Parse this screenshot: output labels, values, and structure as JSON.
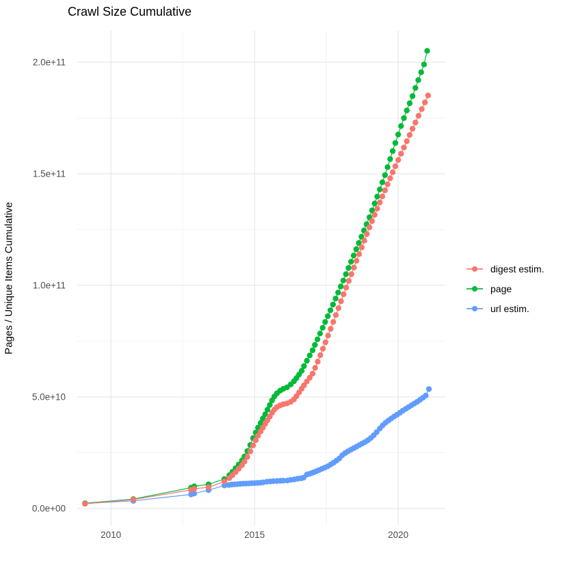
{
  "title": "Crawl Size Cumulative",
  "y_axis": {
    "title": "Pages / Unique Items Cumulative",
    "ticks": [
      {
        "label": "0.0e+00",
        "value_billions": 0
      },
      {
        "label": "5.0e+10",
        "value_billions": 50
      },
      {
        "label": "1.0e+11",
        "value_billions": 100
      },
      {
        "label": "1.5e+11",
        "value_billions": 150
      },
      {
        "label": "2.0e+11",
        "value_billions": 200
      }
    ],
    "minor_ticks_billions": [
      25,
      75,
      125,
      175
    ]
  },
  "x_axis": {
    "ticks": [
      {
        "label": "2010",
        "value": 2010
      },
      {
        "label": "2015",
        "value": 2015
      },
      {
        "label": "2020",
        "value": 2020
      }
    ],
    "minor_ticks": [
      2012.5,
      2017.5
    ]
  },
  "legend": {
    "items": [
      {
        "label": "digest estim.",
        "color": "#F8766D"
      },
      {
        "label": "page",
        "color": "#00BA38"
      },
      {
        "label": "url estim.",
        "color": "#619CFF"
      }
    ]
  },
  "colors": {
    "grid_major": "#E5E5E5",
    "grid_minor": "#F2F2F2",
    "tick_text": "#4D4D4D",
    "background": "#FFFFFF"
  },
  "chart_data": {
    "type": "line",
    "title": "Crawl Size Cumulative",
    "xlabel": "",
    "ylabel": "Pages / Unique Items Cumulative",
    "value_unit_multiplier": 1000000000.0,
    "xlim": [
      2008.83,
      2021.64
    ],
    "ylim_billions": [
      -7.7,
      214.1
    ],
    "grid": "on",
    "legend_position": "right",
    "marker": "point-with-line",
    "series": [
      {
        "name": "url estim.",
        "color": "#619CFF",
        "points": [
          [
            2009.1,
            2.2
          ],
          [
            2010.78,
            3.4
          ],
          [
            2012.79,
            6.3
          ],
          [
            2012.9,
            6.7
          ],
          [
            2013.4,
            8.2
          ],
          [
            2013.95,
            10.3
          ],
          [
            2014.1,
            10.5
          ],
          [
            2014.2,
            10.7
          ],
          [
            2014.3,
            10.8
          ],
          [
            2014.4,
            10.9
          ],
          [
            2014.5,
            11.0
          ],
          [
            2014.6,
            11.1
          ],
          [
            2014.7,
            11.15
          ],
          [
            2014.8,
            11.2
          ],
          [
            2014.9,
            11.3
          ],
          [
            2015.0,
            11.35
          ],
          [
            2015.1,
            11.45
          ],
          [
            2015.2,
            11.55
          ],
          [
            2015.3,
            11.7
          ],
          [
            2015.43,
            12.0
          ],
          [
            2015.55,
            12.1
          ],
          [
            2015.65,
            12.2
          ],
          [
            2015.78,
            12.3
          ],
          [
            2015.9,
            12.4
          ],
          [
            2016.0,
            12.45
          ],
          [
            2016.14,
            12.5
          ],
          [
            2016.26,
            12.8
          ],
          [
            2016.38,
            13.0
          ],
          [
            2016.5,
            13.3
          ],
          [
            2016.62,
            13.5
          ],
          [
            2016.71,
            13.8
          ],
          [
            2016.82,
            15.2
          ],
          [
            2016.9,
            15.5
          ],
          [
            2016.98,
            15.8
          ],
          [
            2017.06,
            16.2
          ],
          [
            2017.15,
            16.7
          ],
          [
            2017.25,
            17.2
          ],
          [
            2017.35,
            17.8
          ],
          [
            2017.45,
            18.3
          ],
          [
            2017.55,
            18.9
          ],
          [
            2017.65,
            19.7
          ],
          [
            2017.75,
            20.5
          ],
          [
            2017.85,
            21.4
          ],
          [
            2017.95,
            22.4
          ],
          [
            2018.05,
            23.8
          ],
          [
            2018.15,
            24.8
          ],
          [
            2018.25,
            25.6
          ],
          [
            2018.35,
            26.3
          ],
          [
            2018.45,
            27.0
          ],
          [
            2018.55,
            27.7
          ],
          [
            2018.65,
            28.4
          ],
          [
            2018.75,
            29.1
          ],
          [
            2018.85,
            29.8
          ],
          [
            2018.95,
            30.6
          ],
          [
            2019.05,
            31.6
          ],
          [
            2019.15,
            32.8
          ],
          [
            2019.25,
            34.2
          ],
          [
            2019.36,
            35.8
          ],
          [
            2019.46,
            37.2
          ],
          [
            2019.56,
            38.4
          ],
          [
            2019.66,
            39.4
          ],
          [
            2019.76,
            40.3
          ],
          [
            2019.86,
            41.2
          ],
          [
            2019.96,
            42.0
          ],
          [
            2020.06,
            42.9
          ],
          [
            2020.16,
            43.8
          ],
          [
            2020.26,
            44.6
          ],
          [
            2020.36,
            45.4
          ],
          [
            2020.46,
            46.2
          ],
          [
            2020.56,
            47.0
          ],
          [
            2020.66,
            47.8
          ],
          [
            2020.76,
            48.7
          ],
          [
            2020.86,
            49.6
          ],
          [
            2020.96,
            50.6
          ],
          [
            2021.07,
            53.5
          ]
        ]
      },
      {
        "name": "page",
        "color": "#00BA38",
        "points": [
          [
            2009.1,
            2.3
          ],
          [
            2010.78,
            4.2
          ],
          [
            2012.79,
            9.3
          ],
          [
            2012.9,
            9.9
          ],
          [
            2013.4,
            10.8
          ],
          [
            2013.95,
            13.2
          ],
          [
            2014.12,
            14.9
          ],
          [
            2014.23,
            16.4
          ],
          [
            2014.34,
            18.0
          ],
          [
            2014.45,
            19.7
          ],
          [
            2014.56,
            21.5
          ],
          [
            2014.65,
            23.3
          ],
          [
            2014.75,
            25.7
          ],
          [
            2014.85,
            28.4
          ],
          [
            2014.95,
            31.5
          ],
          [
            2015.04,
            34.0
          ],
          [
            2015.12,
            36.2
          ],
          [
            2015.21,
            38.3
          ],
          [
            2015.29,
            40.3
          ],
          [
            2015.37,
            42.2
          ],
          [
            2015.45,
            44.3
          ],
          [
            2015.53,
            46.4
          ],
          [
            2015.61,
            48.4
          ],
          [
            2015.69,
            50.2
          ],
          [
            2015.78,
            51.6
          ],
          [
            2015.89,
            52.8
          ],
          [
            2016.0,
            53.6
          ],
          [
            2016.13,
            54.3
          ],
          [
            2016.26,
            55.6
          ],
          [
            2016.37,
            57.0
          ],
          [
            2016.46,
            58.4
          ],
          [
            2016.55,
            60.0
          ],
          [
            2016.64,
            61.7
          ],
          [
            2016.72,
            63.8
          ],
          [
            2016.82,
            66.2
          ],
          [
            2016.92,
            68.6
          ],
          [
            2017.02,
            70.9
          ],
          [
            2017.1,
            73.3
          ],
          [
            2017.19,
            75.8
          ],
          [
            2017.28,
            78.4
          ],
          [
            2017.37,
            81.0
          ],
          [
            2017.46,
            83.6
          ],
          [
            2017.55,
            86.2
          ],
          [
            2017.64,
            88.8
          ],
          [
            2017.73,
            91.4
          ],
          [
            2017.82,
            94.1
          ],
          [
            2017.91,
            96.8
          ],
          [
            2018.0,
            99.5
          ],
          [
            2018.09,
            102.2
          ],
          [
            2018.18,
            105.0
          ],
          [
            2018.27,
            107.8
          ],
          [
            2018.36,
            110.6
          ],
          [
            2018.45,
            113.4
          ],
          [
            2018.54,
            116.2
          ],
          [
            2018.63,
            119.0
          ],
          [
            2018.72,
            121.8
          ],
          [
            2018.81,
            124.6
          ],
          [
            2018.9,
            127.4
          ],
          [
            2019.0,
            130.5
          ],
          [
            2019.09,
            133.6
          ],
          [
            2019.18,
            136.7
          ],
          [
            2019.27,
            139.8
          ],
          [
            2019.36,
            143.0
          ],
          [
            2019.45,
            146.2
          ],
          [
            2019.54,
            149.4
          ],
          [
            2019.63,
            153.0
          ],
          [
            2019.72,
            156.6
          ],
          [
            2019.81,
            160.2
          ],
          [
            2019.9,
            163.8
          ],
          [
            2020.0,
            167.6
          ],
          [
            2020.1,
            171.4
          ],
          [
            2020.2,
            175.0
          ],
          [
            2020.3,
            178.4
          ],
          [
            2020.4,
            181.6
          ],
          [
            2020.5,
            184.8
          ],
          [
            2020.6,
            188.5
          ],
          [
            2020.7,
            192.0
          ],
          [
            2020.8,
            195.5
          ],
          [
            2020.9,
            199.0
          ],
          [
            2021.01,
            205.1
          ]
        ]
      },
      {
        "name": "digest estim.",
        "color": "#F8766D",
        "points": [
          [
            2009.1,
            2.1
          ],
          [
            2010.78,
            4.0
          ],
          [
            2012.79,
            8.3
          ],
          [
            2012.9,
            8.8
          ],
          [
            2013.4,
            9.5
          ],
          [
            2013.95,
            12.1
          ],
          [
            2014.12,
            13.6
          ],
          [
            2014.23,
            14.9
          ],
          [
            2014.34,
            16.3
          ],
          [
            2014.45,
            17.8
          ],
          [
            2014.56,
            19.4
          ],
          [
            2014.65,
            21.0
          ],
          [
            2014.75,
            23.1
          ],
          [
            2014.85,
            25.6
          ],
          [
            2014.95,
            28.3
          ],
          [
            2015.04,
            30.6
          ],
          [
            2015.12,
            32.6
          ],
          [
            2015.21,
            34.5
          ],
          [
            2015.29,
            36.2
          ],
          [
            2015.37,
            37.9
          ],
          [
            2015.45,
            39.5
          ],
          [
            2015.53,
            41.2
          ],
          [
            2015.61,
            42.9
          ],
          [
            2015.69,
            44.3
          ],
          [
            2015.78,
            45.4
          ],
          [
            2015.89,
            46.2
          ],
          [
            2016.0,
            46.7
          ],
          [
            2016.13,
            47.1
          ],
          [
            2016.26,
            47.8
          ],
          [
            2016.37,
            48.9
          ],
          [
            2016.46,
            50.3
          ],
          [
            2016.55,
            52.0
          ],
          [
            2016.64,
            53.7
          ],
          [
            2016.72,
            55.2
          ],
          [
            2016.82,
            56.9
          ],
          [
            2016.92,
            58.6
          ],
          [
            2017.02,
            60.4
          ],
          [
            2017.11,
            63.0
          ],
          [
            2017.2,
            65.8
          ],
          [
            2017.29,
            68.7
          ],
          [
            2017.38,
            71.6
          ],
          [
            2017.47,
            74.5
          ],
          [
            2017.56,
            77.5
          ],
          [
            2017.65,
            80.5
          ],
          [
            2017.74,
            83.6
          ],
          [
            2017.83,
            86.7
          ],
          [
            2017.92,
            89.8
          ],
          [
            2018.01,
            92.9
          ],
          [
            2018.1,
            96.0
          ],
          [
            2018.19,
            99.0
          ],
          [
            2018.28,
            102.0
          ],
          [
            2018.37,
            105.0
          ],
          [
            2018.46,
            108.0
          ],
          [
            2018.55,
            111.0
          ],
          [
            2018.64,
            114.0
          ],
          [
            2018.73,
            117.0
          ],
          [
            2018.82,
            120.0
          ],
          [
            2018.91,
            123.0
          ],
          [
            2019.0,
            126.0
          ],
          [
            2019.09,
            128.8
          ],
          [
            2019.18,
            131.6
          ],
          [
            2019.27,
            134.4
          ],
          [
            2019.36,
            137.2
          ],
          [
            2019.45,
            139.9
          ],
          [
            2019.54,
            142.6
          ],
          [
            2019.63,
            145.3
          ],
          [
            2019.72,
            148.0
          ],
          [
            2019.81,
            150.7
          ],
          [
            2019.9,
            153.4
          ],
          [
            2020.0,
            156.2
          ],
          [
            2020.1,
            159.0
          ],
          [
            2020.2,
            161.8
          ],
          [
            2020.3,
            164.6
          ],
          [
            2020.4,
            167.4
          ],
          [
            2020.5,
            170.2
          ],
          [
            2020.6,
            173.0
          ],
          [
            2020.71,
            176.0
          ],
          [
            2020.82,
            179.0
          ],
          [
            2020.93,
            182.0
          ],
          [
            2021.04,
            185.1
          ]
        ]
      }
    ]
  }
}
